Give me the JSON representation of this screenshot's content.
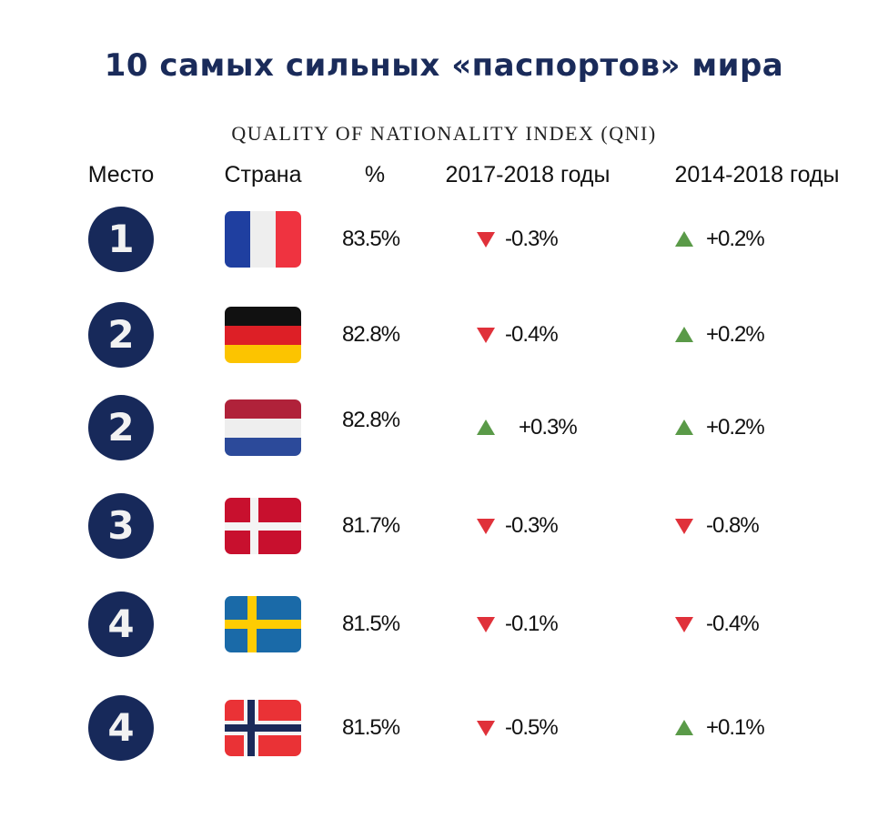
{
  "title": "10 самых сильных «паспортов» мира",
  "subtitle": "QUALITY OF NATIONALITY INDEX (QNI)",
  "colors": {
    "title": "#1a2b5a",
    "badge": "#17295a",
    "down": "#e0313a",
    "up": "#5a9a48"
  },
  "chart_data": {
    "type": "table",
    "columns": [
      "Место",
      "Страна",
      "%",
      "2017-2018 годы",
      "2014-2018 годы"
    ],
    "rows": [
      {
        "rank": "1",
        "country_flag": "france",
        "value": "83.5%",
        "change_2017_2018": "-0.3%",
        "dir1": "down",
        "change_2014_2018": "+0.2%",
        "dir2": "up"
      },
      {
        "rank": "2",
        "country_flag": "germany",
        "value": "82.8%",
        "change_2017_2018": "-0.4%",
        "dir1": "down",
        "change_2014_2018": "+0.2%",
        "dir2": "up"
      },
      {
        "rank": "2",
        "country_flag": "netherlands",
        "value": "82.8%",
        "change_2017_2018": "+0.3%",
        "dir1": "up",
        "change_2014_2018": "+0.2%",
        "dir2": "up"
      },
      {
        "rank": "3",
        "country_flag": "denmark",
        "value": "81.7%",
        "change_2017_2018": "-0.3%",
        "dir1": "down",
        "change_2014_2018": "-0.8%",
        "dir2": "down"
      },
      {
        "rank": "4",
        "country_flag": "sweden",
        "value": "81.5%",
        "change_2017_2018": "-0.1%",
        "dir1": "down",
        "change_2014_2018": "-0.4%",
        "dir2": "down"
      },
      {
        "rank": "4",
        "country_flag": "norway",
        "value": "81.5%",
        "change_2017_2018": "-0.5%",
        "dir1": "down",
        "change_2014_2018": "+0.1%",
        "dir2": "up"
      }
    ]
  }
}
